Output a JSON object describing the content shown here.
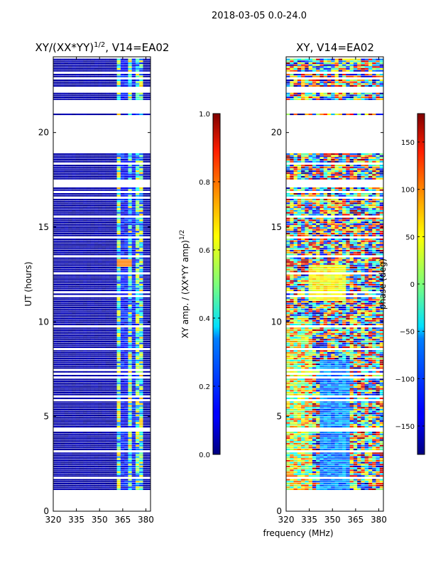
{
  "chart_data": {
    "suptitle": "2018-03-05 0.0-24.0",
    "shared_xlabel": "frequency (MHz)",
    "panels": [
      {
        "type": "heatmap",
        "title_main": "XY/(XX*YY)",
        "title_sup": "1/2",
        "title_rest": ", V14=EA02",
        "ylabel": "UT (hours)",
        "xlim": [
          320,
          383
        ],
        "ylim": [
          0,
          24
        ],
        "xticks": [
          320,
          335,
          350,
          365,
          380
        ],
        "yticks": [
          0,
          5,
          10,
          15,
          20
        ],
        "colorbar": {
          "label_main": "XY amp. / (XX*YY amp)",
          "label_sup": "1/2",
          "range": [
            0.0,
            1.0
          ],
          "ticks": [
            "0.0",
            "0.2",
            "0.4",
            "0.6",
            "0.8",
            "1.0"
          ],
          "tick_values": [
            0.0,
            0.2,
            0.4,
            0.6,
            0.8,
            1.0
          ],
          "colormap": "jet"
        }
      },
      {
        "type": "heatmap",
        "title": "XY, V14=EA02",
        "xlim": [
          320,
          383
        ],
        "ylim": [
          0,
          24
        ],
        "xticks": [
          320,
          335,
          350,
          365,
          380
        ],
        "yticks": [
          0,
          5,
          10,
          15,
          20
        ],
        "colorbar": {
          "label": "phase (deg)",
          "range": [
            -180,
            180
          ],
          "ticks": [
            "150",
            "100",
            "50",
            "0",
            "−50",
            "−100",
            "−150"
          ],
          "tick_values": [
            150,
            100,
            50,
            0,
            -50,
            -100,
            -150
          ],
          "colormap": "jet"
        }
      }
    ]
  }
}
